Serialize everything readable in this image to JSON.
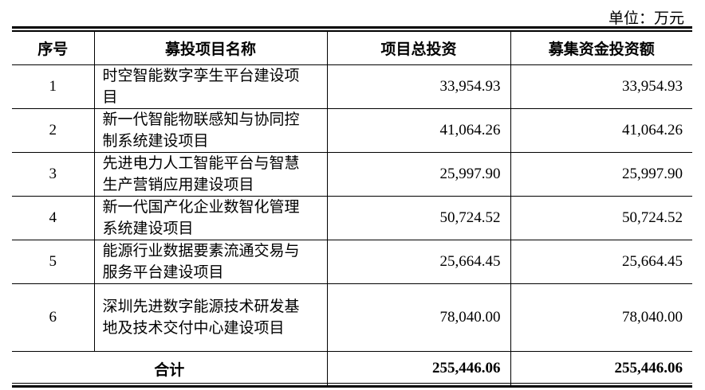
{
  "unit_label": "单位：万元",
  "headers": [
    "序号",
    "募投项目名称",
    "项目总投资",
    "募集资金投资额"
  ],
  "rows": [
    {
      "index": "1",
      "name": "时空智能数字孪生平台建设项目",
      "total_investment": "33,954.93",
      "raised_funds": "33,954.93"
    },
    {
      "index": "2",
      "name": "新一代智能物联感知与协同控制系统建设项目",
      "total_investment": "41,064.26",
      "raised_funds": "41,064.26"
    },
    {
      "index": "3",
      "name": "先进电力人工智能平台与智慧生产营销应用建设项目",
      "total_investment": "25,997.90",
      "raised_funds": "25,997.90"
    },
    {
      "index": "4",
      "name": "新一代国产化企业数智化管理系统建设项目",
      "total_investment": "50,724.52",
      "raised_funds": "50,724.52"
    },
    {
      "index": "5",
      "name": "能源行业数据要素流通交易与服务平台建设项目",
      "total_investment": "25,664.45",
      "raised_funds": "25,664.45"
    },
    {
      "index": "6",
      "name": "深圳先进数字能源技术研发基地及技术交付中心建设项目",
      "total_investment": "78,040.00",
      "raised_funds": "78,040.00"
    }
  ],
  "total": {
    "label": "合计",
    "total_investment": "255,446.06",
    "raised_funds": "255,446.06"
  }
}
